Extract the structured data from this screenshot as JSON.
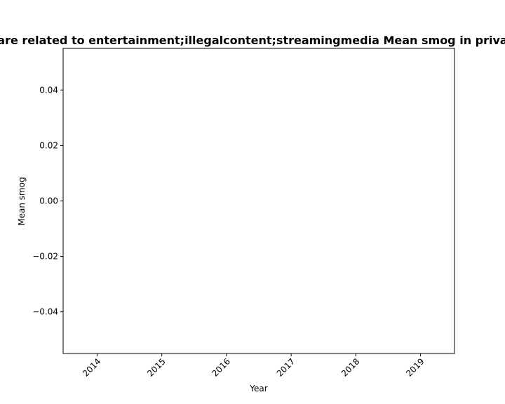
{
  "chart_data": {
    "type": "line",
    "title": "are related to entertainment;illegalcontent;streamingmedia Mean smog in priva",
    "xlabel": "Year",
    "ylabel": "Mean smog",
    "x_categories": [
      "2014",
      "2015",
      "2016",
      "2017",
      "2018",
      "2019"
    ],
    "y_ticks": [
      0.04,
      0.02,
      0.0,
      -0.02,
      -0.04
    ],
    "y_tick_labels": [
      "0.04",
      "0.02",
      "0.00",
      "−0.02",
      "−0.04"
    ],
    "ylim": [
      -0.055,
      0.055
    ],
    "grid": false,
    "series": []
  }
}
